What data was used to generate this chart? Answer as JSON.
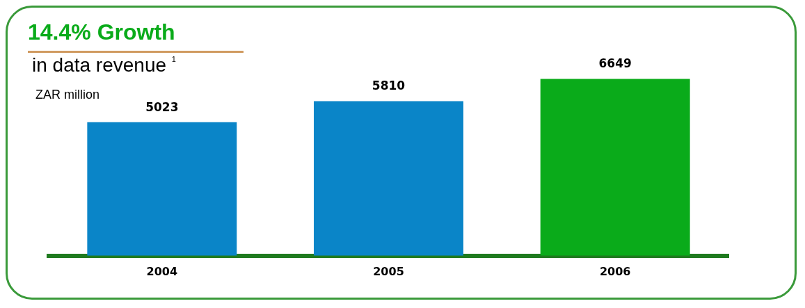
{
  "chart_data": {
    "type": "bar",
    "title": "14.4% Growth",
    "subtitle": "in data revenue $^{1}$",
    "ylabel": "ZAR million",
    "categories": [
      "2004",
      "2005",
      "2006"
    ],
    "values": [
      5023,
      5810,
      6649
    ],
    "colors": [
      "#0a85c8",
      "#0a85c8",
      "#0aab1a"
    ],
    "data_labels": true,
    "grid": false,
    "legend": false
  }
}
